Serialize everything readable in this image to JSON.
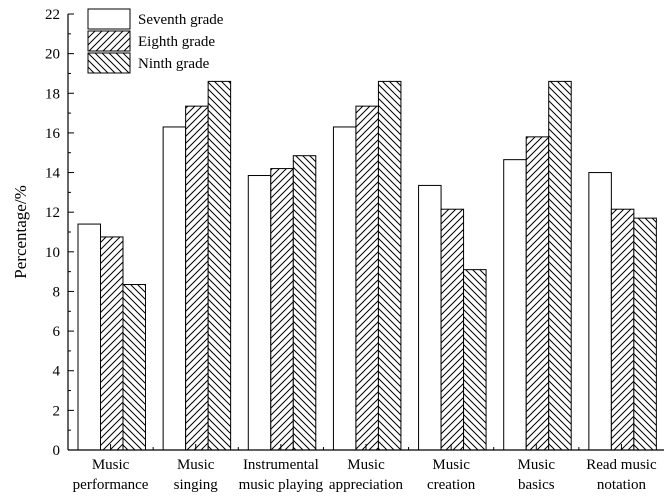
{
  "chart_data": {
    "type": "bar",
    "title": "",
    "xlabel": "",
    "ylabel": "Percentage/%",
    "ylim": [
      0,
      22
    ],
    "yticks": [
      0,
      2,
      4,
      6,
      8,
      10,
      12,
      14,
      16,
      18,
      20,
      22
    ],
    "grid": false,
    "legend_position": "top-left",
    "categories": [
      [
        "Music",
        "performance"
      ],
      [
        "Music",
        "singing"
      ],
      [
        "Instrumental",
        "music playing"
      ],
      [
        "Music",
        "appreciation"
      ],
      [
        "Music",
        "creation"
      ],
      [
        "Music",
        "basics"
      ],
      [
        "Read music",
        "notation"
      ]
    ],
    "series": [
      {
        "name": "Seventh grade",
        "pattern": "none",
        "values": [
          11.4,
          16.3,
          13.85,
          16.3,
          13.35,
          14.65,
          14.0
        ]
      },
      {
        "name": "Eighth grade",
        "pattern": "forward-diagonal",
        "values": [
          10.75,
          17.35,
          14.2,
          17.35,
          12.15,
          15.8,
          12.15
        ]
      },
      {
        "name": "Ninth grade",
        "pattern": "back-diagonal",
        "values": [
          8.35,
          18.6,
          14.85,
          18.6,
          9.1,
          18.6,
          11.7
        ]
      }
    ]
  }
}
